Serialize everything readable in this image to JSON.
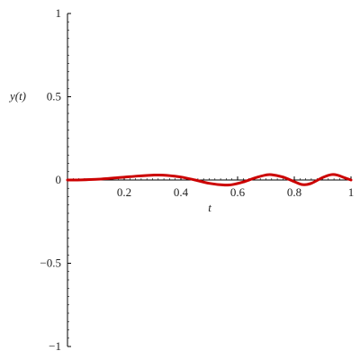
{
  "chart_data": {
    "type": "line",
    "title": "",
    "xlabel": "t",
    "ylabel": "y(t)",
    "xlim": [
      0,
      1
    ],
    "ylim": [
      -1,
      1
    ],
    "grid": false,
    "legend": "none",
    "x_ticks": [
      {
        "value": 0.2,
        "label": "0.2"
      },
      {
        "value": 0.4,
        "label": "0.4"
      },
      {
        "value": 0.6,
        "label": "0.6"
      },
      {
        "value": 0.8,
        "label": "0.8"
      },
      {
        "value": 1.0,
        "label": "1"
      }
    ],
    "y_ticks": [
      {
        "value": 1,
        "label": "1"
      },
      {
        "value": 0.5,
        "label": "0.5"
      },
      {
        "value": 0,
        "label": "0"
      },
      {
        "value": -0.5,
        "label": "−0.5"
      },
      {
        "value": -1,
        "label": "−1"
      }
    ],
    "series": [
      {
        "color": "#cc0000",
        "x": [
          0,
          0.05,
          0.1,
          0.15,
          0.2,
          0.25,
          0.3,
          0.32,
          0.35,
          0.4,
          0.45,
          0.5,
          0.55,
          0.58,
          0.62,
          0.66,
          0.7,
          0.72,
          0.76,
          0.8,
          0.83,
          0.86,
          0.9,
          0.93,
          0.95,
          0.98,
          1.0
        ],
        "y": [
          0,
          0.001,
          0.004,
          0.01,
          0.017,
          0.024,
          0.029,
          0.03,
          0.028,
          0.018,
          0.0,
          -0.02,
          -0.03,
          -0.028,
          -0.012,
          0.012,
          0.03,
          0.032,
          0.018,
          -0.01,
          -0.028,
          -0.02,
          0.015,
          0.032,
          0.03,
          0.012,
          0.0
        ]
      }
    ]
  }
}
